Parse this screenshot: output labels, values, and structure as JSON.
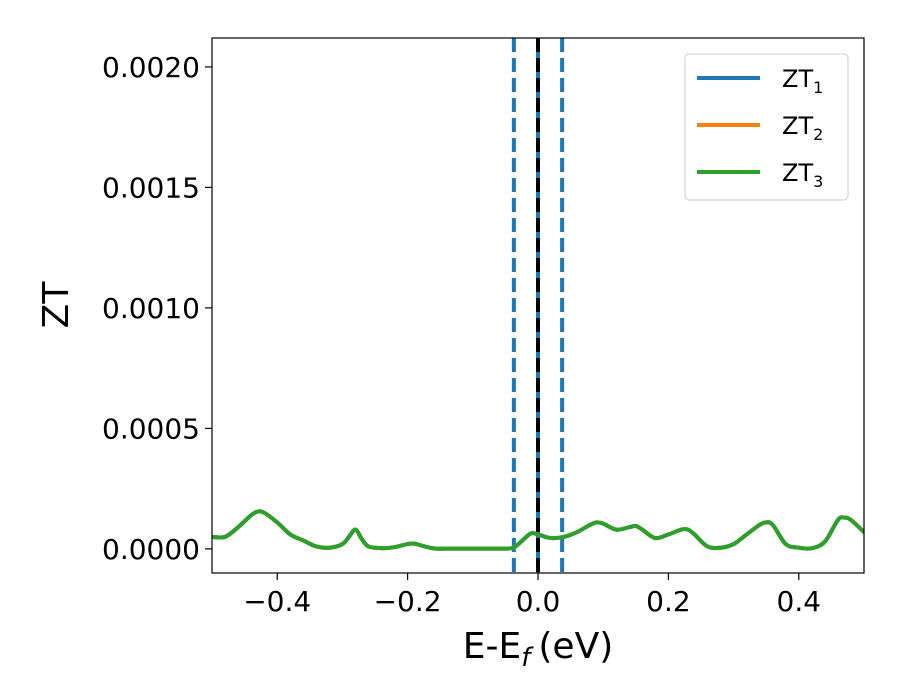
{
  "chart_data": {
    "type": "line",
    "xlabel": "E-E",
    "xlabel_sub": "f",
    "xlabel_unit": "(eV)",
    "ylabel": "ZT",
    "xlim": [
      -0.5,
      0.5
    ],
    "ylim": [
      -0.0001,
      0.00212
    ],
    "xticks": [
      -0.4,
      -0.2,
      0.0,
      0.2,
      0.4
    ],
    "xtick_labels": [
      "−0.4",
      "−0.2",
      "0.0",
      "0.2",
      "0.4"
    ],
    "yticks": [
      0.0,
      0.0005,
      0.001,
      0.0015,
      0.002
    ],
    "ytick_labels": [
      "0.0000",
      "0.0005",
      "0.0010",
      "0.0015",
      "0.0020"
    ],
    "grid": false,
    "legend_position": "top-right",
    "vlines": [
      {
        "x": -0.037,
        "style": "dashed",
        "color": "#1f77b4"
      },
      {
        "x": 0.037,
        "style": "dashed",
        "color": "#1f77b4"
      },
      {
        "x": 0.0,
        "style": "solid",
        "color": "#1f77b4"
      },
      {
        "x": 0.0,
        "style": "dashed",
        "color": "#000000"
      }
    ],
    "series": [
      {
        "name": "ZT",
        "sub": "1",
        "color": "#1f77b4",
        "x": [
          -0.5,
          -0.48,
          -0.46,
          -0.44,
          -0.43,
          -0.42,
          -0.4,
          -0.38,
          -0.36,
          -0.34,
          -0.32,
          -0.3,
          -0.29,
          -0.28,
          -0.27,
          -0.26,
          -0.24,
          -0.22,
          -0.2,
          -0.19,
          -0.18,
          -0.16,
          -0.14,
          -0.1,
          -0.06,
          -0.04,
          -0.03,
          -0.02,
          -0.01,
          0.0,
          0.02,
          0.04,
          0.06,
          0.08,
          0.09,
          0.1,
          0.12,
          0.14,
          0.15,
          0.16,
          0.18,
          0.2,
          0.22,
          0.23,
          0.24,
          0.26,
          0.28,
          0.3,
          0.32,
          0.34,
          0.35,
          0.36,
          0.38,
          0.4,
          0.42,
          0.44,
          0.46,
          0.47,
          0.48,
          0.5
        ],
        "y": [
          5e-05,
          5e-05,
          9e-05,
          0.00014,
          0.000155,
          0.00015,
          0.00011,
          6e-05,
          3.5e-05,
          1e-05,
          5e-06,
          2e-05,
          5e-05,
          8e-05,
          4e-05,
          1e-05,
          3e-06,
          7e-06,
          2e-05,
          2.2e-05,
          1.5e-05,
          2e-06,
          1e-06,
          1e-06,
          1e-06,
          3e-06,
          2e-05,
          4.5e-05,
          6.5e-05,
          6e-05,
          4.5e-05,
          5e-05,
          7e-05,
          0.0001,
          0.00011,
          0.000105,
          8e-05,
          9e-05,
          9.5e-05,
          8e-05,
          4.5e-05,
          6e-05,
          8e-05,
          8e-05,
          6e-05,
          1e-05,
          5e-06,
          2e-05,
          6e-05,
          0.0001,
          0.00011,
          0.0001,
          2e-05,
          5e-06,
          3e-06,
          3e-05,
          0.00012,
          0.00013,
          0.00012,
          7e-05
        ]
      },
      {
        "name": "ZT",
        "sub": "2",
        "color": "#ff7f0e",
        "x": [
          -0.5,
          -0.48,
          -0.46,
          -0.44,
          -0.43,
          -0.42,
          -0.4,
          -0.38,
          -0.36,
          -0.34,
          -0.32,
          -0.3,
          -0.29,
          -0.28,
          -0.27,
          -0.26,
          -0.24,
          -0.22,
          -0.2,
          -0.19,
          -0.18,
          -0.16,
          -0.14,
          -0.1,
          -0.06,
          -0.04,
          -0.03,
          -0.02,
          -0.01,
          0.0,
          0.02,
          0.04,
          0.06,
          0.08,
          0.09,
          0.1,
          0.12,
          0.14,
          0.15,
          0.16,
          0.18,
          0.2,
          0.22,
          0.23,
          0.24,
          0.26,
          0.28,
          0.3,
          0.32,
          0.34,
          0.35,
          0.36,
          0.38,
          0.4,
          0.42,
          0.44,
          0.46,
          0.47,
          0.48,
          0.5
        ],
        "y": [
          5e-05,
          5e-05,
          9e-05,
          0.00014,
          0.000155,
          0.00015,
          0.00011,
          6e-05,
          3.5e-05,
          1e-05,
          5e-06,
          2e-05,
          5e-05,
          8e-05,
          4e-05,
          1e-05,
          3e-06,
          7e-06,
          2e-05,
          2.2e-05,
          1.5e-05,
          2e-06,
          1e-06,
          1e-06,
          1e-06,
          3e-06,
          2e-05,
          4.5e-05,
          6.5e-05,
          6e-05,
          4.5e-05,
          5e-05,
          7e-05,
          0.0001,
          0.00011,
          0.000105,
          8e-05,
          9e-05,
          9.5e-05,
          8e-05,
          4.5e-05,
          6e-05,
          8e-05,
          8e-05,
          6e-05,
          1e-05,
          5e-06,
          2e-05,
          6e-05,
          0.0001,
          0.00011,
          0.0001,
          2e-05,
          5e-06,
          3e-06,
          3e-05,
          0.00012,
          0.00013,
          0.00012,
          7e-05
        ]
      },
      {
        "name": "ZT",
        "sub": "3",
        "color": "#2ca02c",
        "x": [
          -0.5,
          -0.48,
          -0.46,
          -0.44,
          -0.43,
          -0.42,
          -0.4,
          -0.38,
          -0.36,
          -0.34,
          -0.32,
          -0.3,
          -0.29,
          -0.28,
          -0.27,
          -0.26,
          -0.24,
          -0.22,
          -0.2,
          -0.19,
          -0.18,
          -0.16,
          -0.14,
          -0.1,
          -0.06,
          -0.04,
          -0.03,
          -0.02,
          -0.01,
          0.0,
          0.02,
          0.04,
          0.06,
          0.08,
          0.09,
          0.1,
          0.12,
          0.14,
          0.15,
          0.16,
          0.18,
          0.2,
          0.22,
          0.23,
          0.24,
          0.26,
          0.28,
          0.3,
          0.32,
          0.34,
          0.35,
          0.36,
          0.38,
          0.4,
          0.42,
          0.44,
          0.46,
          0.47,
          0.48,
          0.5
        ],
        "y": [
          5e-05,
          5e-05,
          9e-05,
          0.00014,
          0.000155,
          0.00015,
          0.00011,
          6e-05,
          3.5e-05,
          1e-05,
          5e-06,
          2e-05,
          5e-05,
          8e-05,
          4e-05,
          1e-05,
          3e-06,
          7e-06,
          2e-05,
          2.2e-05,
          1.5e-05,
          2e-06,
          1e-06,
          1e-06,
          1e-06,
          3e-06,
          2e-05,
          4.5e-05,
          6.5e-05,
          6e-05,
          4.5e-05,
          5e-05,
          7e-05,
          0.0001,
          0.00011,
          0.000105,
          8e-05,
          9e-05,
          9.5e-05,
          8e-05,
          4.5e-05,
          6e-05,
          8e-05,
          8e-05,
          6e-05,
          1e-05,
          5e-06,
          2e-05,
          6e-05,
          0.0001,
          0.00011,
          0.0001,
          2e-05,
          5e-06,
          3e-06,
          3e-05,
          0.00012,
          0.00013,
          0.00012,
          7e-05
        ]
      }
    ]
  }
}
